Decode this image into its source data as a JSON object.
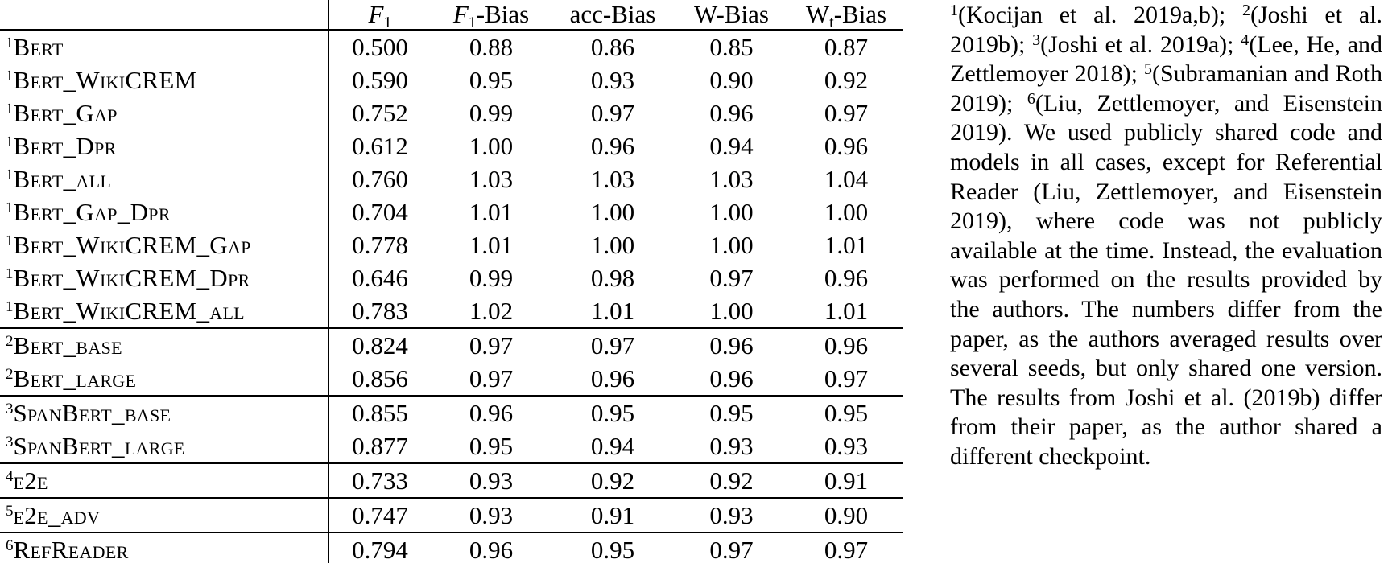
{
  "colors": {
    "text": "#000000",
    "background": "#ffffff",
    "rule": "#000000"
  },
  "table": {
    "columns": [
      {
        "pre": "F",
        "sub": "1",
        "post": "",
        "italic_pre": true,
        "id": "f1"
      },
      {
        "pre": "F",
        "sub": "1",
        "post": "-Bias",
        "italic_pre": true,
        "id": "f1-bias"
      },
      {
        "pre": "acc-Bias",
        "sub": "",
        "post": "",
        "italic_pre": false,
        "id": "acc-bias"
      },
      {
        "pre": "W-Bias",
        "sub": "",
        "post": "",
        "italic_pre": false,
        "id": "w-bias"
      },
      {
        "pre": "W",
        "sub": "t",
        "post": "-Bias",
        "italic_pre": false,
        "id": "wt-bias"
      }
    ],
    "rows": [
      {
        "sup": "1",
        "name": "Bert",
        "values": [
          "0.500",
          "0.88",
          "0.86",
          "0.85",
          "0.87"
        ],
        "group_end": false
      },
      {
        "sup": "1",
        "name": "Bert_WikiCREM",
        "values": [
          "0.590",
          "0.95",
          "0.93",
          "0.90",
          "0.92"
        ],
        "group_end": false
      },
      {
        "sup": "1",
        "name": "Bert_Gap",
        "values": [
          "0.752",
          "0.99",
          "0.97",
          "0.96",
          "0.97"
        ],
        "group_end": false
      },
      {
        "sup": "1",
        "name": "Bert_Dpr",
        "values": [
          "0.612",
          "1.00",
          "0.96",
          "0.94",
          "0.96"
        ],
        "group_end": false
      },
      {
        "sup": "1",
        "name": "Bert_all",
        "values": [
          "0.760",
          "1.03",
          "1.03",
          "1.03",
          "1.04"
        ],
        "group_end": false
      },
      {
        "sup": "1",
        "name": "Bert_Gap_Dpr",
        "values": [
          "0.704",
          "1.01",
          "1.00",
          "1.00",
          "1.00"
        ],
        "group_end": false
      },
      {
        "sup": "1",
        "name": "Bert_WikiCREM_Gap",
        "values": [
          "0.778",
          "1.01",
          "1.00",
          "1.00",
          "1.01"
        ],
        "group_end": false
      },
      {
        "sup": "1",
        "name": "Bert_WikiCREM_Dpr",
        "values": [
          "0.646",
          "0.99",
          "0.98",
          "0.97",
          "0.96"
        ],
        "group_end": false
      },
      {
        "sup": "1",
        "name": "Bert_WikiCREM_all",
        "values": [
          "0.783",
          "1.02",
          "1.01",
          "1.00",
          "1.01"
        ],
        "group_end": true
      },
      {
        "sup": "2",
        "name": "Bert_base",
        "values": [
          "0.824",
          "0.97",
          "0.97",
          "0.96",
          "0.96"
        ],
        "group_end": false
      },
      {
        "sup": "2",
        "name": "Bert_large",
        "values": [
          "0.856",
          "0.97",
          "0.96",
          "0.96",
          "0.97"
        ],
        "group_end": true
      },
      {
        "sup": "3",
        "name": "SpanBert_base",
        "values": [
          "0.855",
          "0.96",
          "0.95",
          "0.95",
          "0.95"
        ],
        "group_end": false
      },
      {
        "sup": "3",
        "name": "SpanBert_large",
        "values": [
          "0.877",
          "0.95",
          "0.94",
          "0.93",
          "0.93"
        ],
        "group_end": true
      },
      {
        "sup": "4",
        "name": "e2e",
        "values": [
          "0.733",
          "0.93",
          "0.92",
          "0.92",
          "0.91"
        ],
        "group_end": true
      },
      {
        "sup": "5",
        "name": "e2e_adv",
        "values": [
          "0.747",
          "0.93",
          "0.91",
          "0.93",
          "0.90"
        ],
        "group_end": true
      },
      {
        "sup": "6",
        "name": "RefReader",
        "values": [
          "0.794",
          "0.96",
          "0.95",
          "0.97",
          "0.97"
        ],
        "group_end": true
      }
    ]
  },
  "note": {
    "segments": [
      {
        "sup": "1",
        "text": "(Kocijan et al. 2019a,b); "
      },
      {
        "sup": "2",
        "text": "(Joshi et al. 2019b); "
      },
      {
        "sup": "3",
        "text": "(Joshi et al. 2019a); "
      },
      {
        "sup": "4",
        "text": "(Lee, He, and Zettlemoyer 2018); "
      },
      {
        "sup": "5",
        "text": "(Subramanian and Roth 2019); "
      },
      {
        "sup": "6",
        "text": "(Liu, Zettlemoyer, and Eisenstein 2019). We used publicly shared code and models in all cases, except for Referential Reader (Liu, Zettlemoyer, and Eisenstein 2019), where code was not publicly available at the time. Instead, the evaluation was performed on the results provided by the authors. The numbers differ from the paper, as the authors averaged results over several seeds, but only shared one version. The results from Joshi et al. (2019b) differ from their paper, as the author shared a different checkpoint."
      }
    ]
  }
}
